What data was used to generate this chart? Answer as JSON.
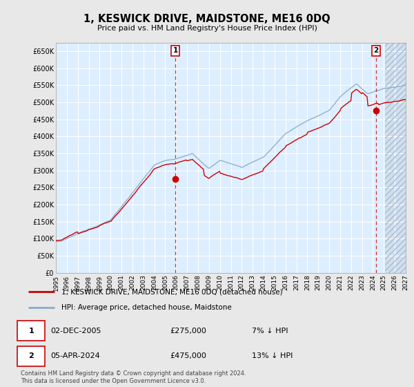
{
  "title": "1, KESWICK DRIVE, MAIDSTONE, ME16 0DQ",
  "subtitle": "Price paid vs. HM Land Registry's House Price Index (HPI)",
  "ylim": [
    0,
    675000
  ],
  "xlim_start": 1995.0,
  "xlim_end": 2027.0,
  "transaction1_x": 2005.92,
  "transaction1_y": 275000,
  "transaction1_label": "1",
  "transaction2_x": 2024.27,
  "transaction2_y": 475000,
  "transaction2_label": "2",
  "hatch_start": 2025.08,
  "legend_line1": "1, KESWICK DRIVE, MAIDSTONE, ME16 0DQ (detached house)",
  "legend_line2": "HPI: Average price, detached house, Maidstone",
  "footer": "Contains HM Land Registry data © Crown copyright and database right 2024.\nThis data is licensed under the Open Government Licence v3.0.",
  "line_color_red": "#cc0000",
  "line_color_blue": "#88aacc",
  "bg_color": "#e8e8e8",
  "plot_bg_color": "#ddeeff",
  "grid_color": "#ffffff",
  "marker_color_red": "#cc0000"
}
